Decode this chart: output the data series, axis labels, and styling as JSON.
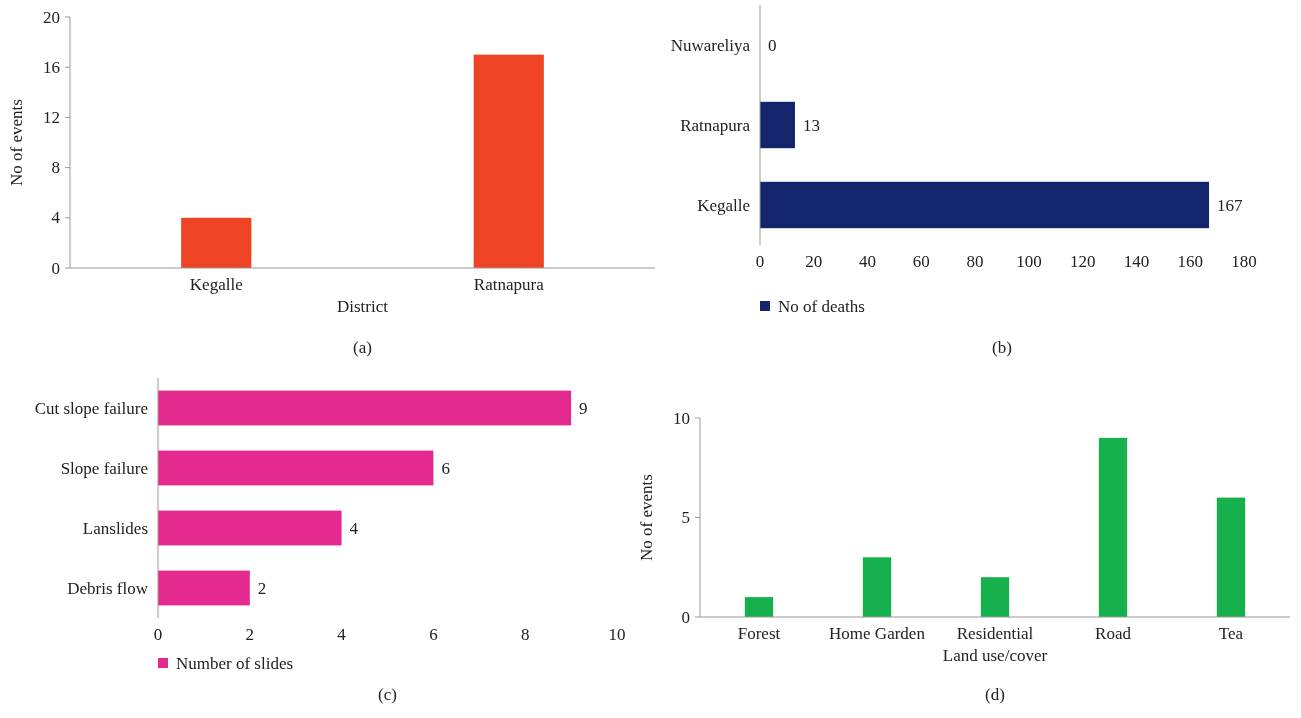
{
  "chart_data": [
    {
      "type": "bar",
      "categories": [
        "Kegalle",
        "Ratnapura"
      ],
      "values": [
        4,
        17
      ],
      "color": "#ee4325",
      "ylim": [
        0,
        20
      ],
      "yticks": [
        0,
        4,
        8,
        12,
        16,
        20
      ],
      "xlabel": "District",
      "ylabel": "No of events",
      "annotations": [
        "(a)"
      ],
      "grid": false,
      "legend": false
    },
    {
      "type": "bar",
      "orientation": "horizontal",
      "categories": [
        "Nuwareliya",
        "Ratnapura",
        "Kegalle"
      ],
      "series": [
        {
          "name": "No of deaths",
          "color": "#14266b",
          "values": [
            0,
            13,
            167
          ]
        }
      ],
      "xlim": [
        0,
        180
      ],
      "xticks": [
        0,
        20,
        40,
        60,
        80,
        100,
        120,
        140,
        160,
        180
      ],
      "data_labels": true,
      "annotations": [
        "(b)"
      ],
      "grid": false,
      "legend": "bottom left"
    },
    {
      "type": "bar",
      "orientation": "horizontal",
      "categories": [
        "Cut slope failure",
        "Slope failure",
        "Lanslides",
        "Debris flow"
      ],
      "series": [
        {
          "name": "Number of slides",
          "color": "#e52a8f",
          "values": [
            9,
            6,
            4,
            2
          ]
        }
      ],
      "xlim": [
        0,
        10
      ],
      "xticks": [
        0,
        2,
        4,
        6,
        8,
        10
      ],
      "data_labels": true,
      "annotations": [
        "(c)"
      ],
      "grid": false,
      "legend": "bottom left"
    },
    {
      "type": "bar",
      "categories": [
        "Forest",
        "Home Garden",
        "Residential",
        "Road",
        "Tea"
      ],
      "values": [
        1,
        3,
        2,
        9,
        6
      ],
      "color": "#16b14d",
      "ylim": [
        0,
        10
      ],
      "yticks": [
        0,
        5,
        10
      ],
      "xlabel": "Land use/cover",
      "ylabel": "No of events",
      "annotations": [
        "(d)"
      ],
      "grid": false,
      "legend": false
    }
  ]
}
